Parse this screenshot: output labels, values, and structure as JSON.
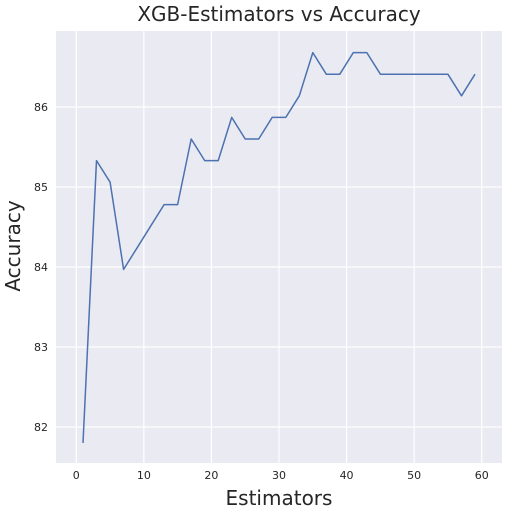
{
  "chart_data": {
    "type": "line",
    "title": "XGB-Estimators vs Accuracy",
    "xlabel": "Estimators",
    "ylabel": "Accuracy",
    "xlim": [
      -3,
      63
    ],
    "ylim": [
      81.55,
      86.95
    ],
    "xticks": [
      0,
      10,
      20,
      30,
      40,
      50,
      60
    ],
    "yticks": [
      82,
      83,
      84,
      85,
      86
    ],
    "grid": true,
    "colors": {
      "background": "#eaeaf2",
      "grid": "#ffffff",
      "line": "#4c72b0"
    },
    "series": [
      {
        "x": [
          1,
          3,
          5,
          7,
          9,
          11,
          13,
          15,
          17,
          19,
          21,
          23,
          25,
          27,
          29,
          31,
          33,
          35,
          37,
          39,
          41,
          43,
          45,
          47,
          49,
          51,
          53,
          55,
          57,
          59
        ],
        "values": [
          81.8,
          85.33,
          85.06,
          83.97,
          84.24,
          84.51,
          84.78,
          84.78,
          85.6,
          85.33,
          85.33,
          85.87,
          85.6,
          85.6,
          85.87,
          85.87,
          86.14,
          86.68,
          86.41,
          86.41,
          86.68,
          86.68,
          86.41,
          86.41,
          86.41,
          86.41,
          86.41,
          86.41,
          86.14,
          86.41
        ]
      }
    ]
  }
}
